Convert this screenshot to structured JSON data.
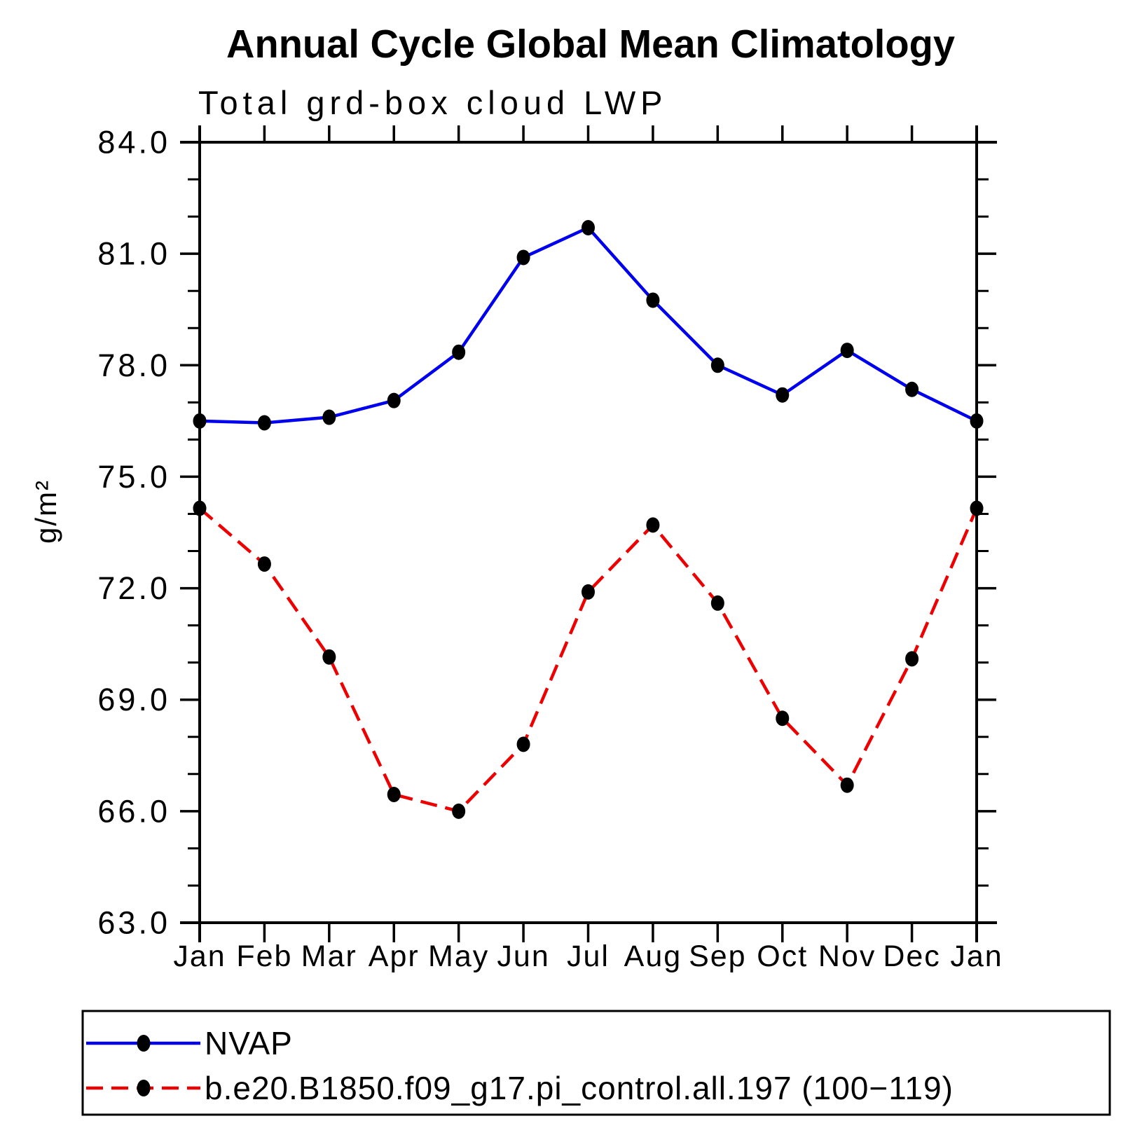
{
  "title": "Annual Cycle Global Mean Climatology",
  "subtitle": "Total grd-box cloud LWP",
  "chart_data": {
    "type": "line",
    "categories": [
      "Jan",
      "Feb",
      "Mar",
      "Apr",
      "May",
      "Jun",
      "Jul",
      "Aug",
      "Sep",
      "Oct",
      "Nov",
      "Dec",
      "Jan"
    ],
    "series": [
      {
        "name": "NVAP",
        "color": "#0000ee",
        "line_style": "solid",
        "marker": "black-dot",
        "values": [
          76.5,
          76.45,
          76.6,
          77.05,
          78.35,
          80.9,
          81.7,
          79.75,
          78.0,
          77.2,
          78.4,
          77.35,
          76.5
        ]
      },
      {
        "name": "b.e20.B1850.f09_g17.pi_control.all.197 (100−119)",
        "color": "#ee0000",
        "line_style": "dashed",
        "marker": "black-dot",
        "values": [
          74.15,
          72.65,
          70.15,
          66.45,
          66.0,
          67.8,
          71.9,
          73.7,
          71.6,
          68.5,
          66.7,
          70.1,
          74.15
        ]
      }
    ],
    "xlabel": "",
    "ylabel": "g/m²",
    "ylim": [
      63.0,
      84.0
    ],
    "ytick_major_step": 3.0,
    "ytick_minor_step": 1.0,
    "ytick_labels": [
      "63.0",
      "66.0",
      "69.0",
      "72.0",
      "75.0",
      "78.0",
      "81.0",
      "84.0"
    ],
    "grid": false,
    "legend_position": "bottom",
    "marker_color": "#000000",
    "axis_color": "#000000"
  }
}
